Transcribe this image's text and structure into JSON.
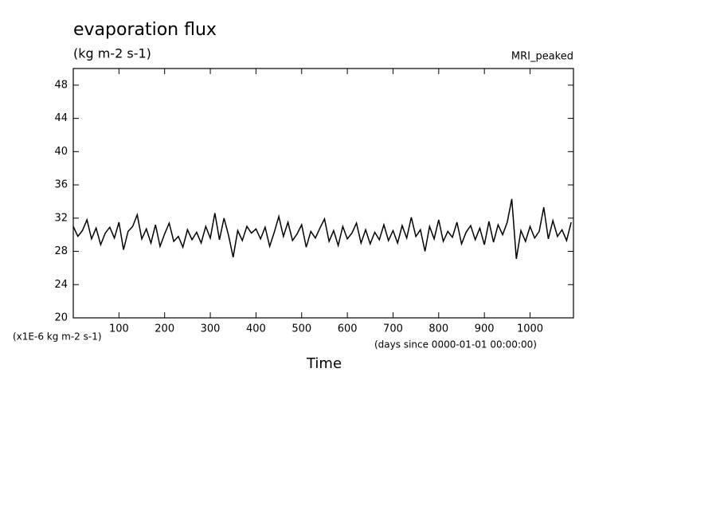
{
  "chart_data": {
    "type": "line",
    "title": "evaporation flux",
    "subtitle": "(kg m-2 s-1)",
    "dataset_label": "MRI_peaked",
    "y_units_label": "(x1E-6 kg m-2 s-1)",
    "x_units_label": "(days since 0000-01-01 00:00:00)",
    "x_label": "Time",
    "color": "#000000",
    "xlim": [
      0,
      1095
    ],
    "xticks": [
      100,
      200,
      300,
      400,
      500,
      600,
      700,
      800,
      900,
      1000
    ],
    "ylim": [
      20,
      50
    ],
    "yticks": [
      20,
      24,
      28,
      32,
      36,
      40,
      44,
      48
    ],
    "x": [
      0,
      10,
      20,
      30,
      40,
      50,
      60,
      70,
      80,
      90,
      100,
      110,
      120,
      130,
      140,
      150,
      160,
      170,
      180,
      190,
      200,
      210,
      220,
      230,
      240,
      250,
      260,
      270,
      280,
      290,
      300,
      310,
      320,
      330,
      340,
      350,
      360,
      370,
      380,
      390,
      400,
      410,
      420,
      430,
      440,
      450,
      460,
      470,
      480,
      490,
      500,
      510,
      520,
      530,
      540,
      550,
      560,
      570,
      580,
      590,
      600,
      610,
      620,
      630,
      640,
      650,
      660,
      670,
      680,
      690,
      700,
      710,
      720,
      730,
      740,
      750,
      760,
      770,
      780,
      790,
      800,
      810,
      820,
      830,
      840,
      850,
      860,
      870,
      880,
      890,
      900,
      910,
      920,
      930,
      940,
      950,
      960,
      970,
      980,
      990,
      1000,
      1010,
      1020,
      1030,
      1040,
      1050,
      1060,
      1070,
      1080,
      1090
    ],
    "values": [
      31,
      29.8,
      30.5,
      31.8,
      29.5,
      30.8,
      28.8,
      30.2,
      30.9,
      29.6,
      31.5,
      28.2,
      30.4,
      31.0,
      32.4,
      29.5,
      30.7,
      29.0,
      31.2,
      28.6,
      30.1,
      31.4,
      29.2,
      29.8,
      28.5,
      30.6,
      29.4,
      30.3,
      29.0,
      31.0,
      29.6,
      32.6,
      29.4,
      32.0,
      29.9,
      27.3,
      30.5,
      29.3,
      31.0,
      30.2,
      30.7,
      29.5,
      30.9,
      28.6,
      30.3,
      32.2,
      29.8,
      31.5,
      29.3,
      30.1,
      31.2,
      28.5,
      30.4,
      29.6,
      30.8,
      31.9,
      29.2,
      30.5,
      28.7,
      31.0,
      29.5,
      30.2,
      31.4,
      29.0,
      30.6,
      28.9,
      30.3,
      29.4,
      31.2,
      29.3,
      30.5,
      29.0,
      31.1,
      29.6,
      32.1,
      29.8,
      30.6,
      28.0,
      31.0,
      29.5,
      31.8,
      29.2,
      30.4,
      29.7,
      31.5,
      28.9,
      30.3,
      31.1,
      29.4,
      30.8,
      28.8,
      31.6,
      29.1,
      31.2,
      30.0,
      31.5,
      34.3,
      27.1,
      30.5,
      29.2,
      31.0,
      29.6,
      30.4,
      33.3,
      29.5,
      31.7,
      29.8,
      30.6,
      29.3,
      31.5
    ]
  }
}
